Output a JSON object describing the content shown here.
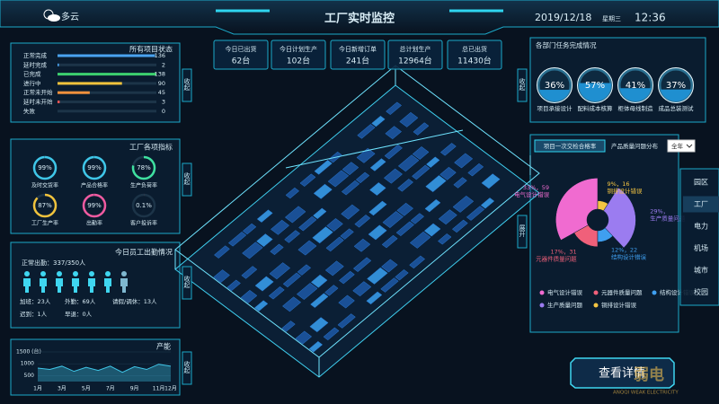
{
  "header": {
    "weather": "多云",
    "title": "工厂实时监控",
    "date": "2019/12/18",
    "weekday": "星期三",
    "time": "12:36"
  },
  "kpis": [
    {
      "label": "今日已出货",
      "value": "62台"
    },
    {
      "label": "今日计划生产",
      "value": "102台"
    },
    {
      "label": "今日新增订单",
      "value": "241台"
    },
    {
      "label": "总计划生产",
      "value": "12964台"
    },
    {
      "label": "总已出货",
      "value": "11430台"
    }
  ],
  "project_status": {
    "title": "所有项目状态",
    "categories": [
      "正常完成",
      "延时完成",
      "已完成",
      "进行中",
      "正常未开始",
      "延时未开始",
      "失败"
    ],
    "values": [
      136,
      2,
      138,
      90,
      45,
      3,
      0
    ],
    "colors": [
      "#4aa3f0",
      "#4aa3f0",
      "#3ccf6e",
      "#f0c23c",
      "#f0903c",
      "#f05454",
      "#8a9aa8"
    ]
  },
  "factory_indicators": {
    "title": "工厂各项指标",
    "items": [
      {
        "label": "及时交货率",
        "value": 99,
        "value_label": "99%"
      },
      {
        "label": "产品合格率",
        "value": 99,
        "value_label": "99%"
      },
      {
        "label": "生产负荷率",
        "value": 78,
        "value_label": "78%"
      },
      {
        "label": "工厂生产率",
        "value": 87,
        "value_label": "87%"
      },
      {
        "label": "出勤率",
        "value": 99,
        "value_label": "99%"
      },
      {
        "label": "客户投诉率",
        "value": 0.1,
        "value_label": "0.1%"
      }
    ]
  },
  "attendance": {
    "title": "今日员工出勤情况",
    "summary": "正常出勤：337/350人",
    "details": [
      "加班：23人",
      "外勤：69人",
      "请假/调休：13人",
      "迟到：1人",
      "早退：0人"
    ]
  },
  "capacity": {
    "type": "area",
    "title": "产能",
    "categories": [
      "1月",
      null,
      "3月",
      null,
      "5月",
      null,
      "7月",
      null,
      "9月",
      null,
      "11月",
      "12月"
    ],
    "values": [
      820,
      760,
      900,
      680,
      850,
      720,
      900,
      640,
      880,
      760,
      980,
      900
    ],
    "ylim": [
      250,
      1500
    ],
    "yticks": [
      500,
      1000,
      {
        "value": 1500,
        "label": "1500 (台)"
      }
    ],
    "color": "#3fc6e8"
  },
  "department_tasks": {
    "title": "各部门任务完成情况",
    "items": [
      {
        "label": "项目承接设计",
        "value": 36,
        "value_label": "36%"
      },
      {
        "label": "配料成本核算",
        "value": 57,
        "value_label": "57%"
      },
      {
        "label": "柜体母线制造",
        "value": 41,
        "value_label": "41%"
      },
      {
        "label": "成品总装测试",
        "value": 37,
        "value_label": "37%"
      }
    ]
  },
  "quality": {
    "tabs": [
      "项目一次交检合格率",
      "产品质量问题分布"
    ],
    "filter": "全年",
    "type": "rose",
    "categories": [
      "电气设计错误",
      "元器件质量问题",
      "结构设计错误",
      "生产质量问题",
      "铜排设计错误"
    ],
    "values": [
      33,
      17,
      12,
      29,
      9
    ],
    "value_labels": [
      "33%，59",
      "17%，31",
      "12%，22",
      "29%，",
      "9%，16"
    ],
    "colors": [
      "#f06bd0",
      "#f0607a",
      "#3f9ff0",
      "#9b7cf0",
      "#f5c542"
    ]
  },
  "menu": {
    "items": [
      "园区",
      "工厂",
      "电力",
      "机场",
      "城市",
      "校园"
    ],
    "active": 1
  },
  "side_buttons": [
    "收起",
    "收起",
    "收起",
    "收起",
    "收起",
    "展开"
  ],
  "detail_button": "查看详情",
  "watermark": {
    "name": "弱电",
    "sub": "ANQQI WEAK ELECTRICITY"
  }
}
